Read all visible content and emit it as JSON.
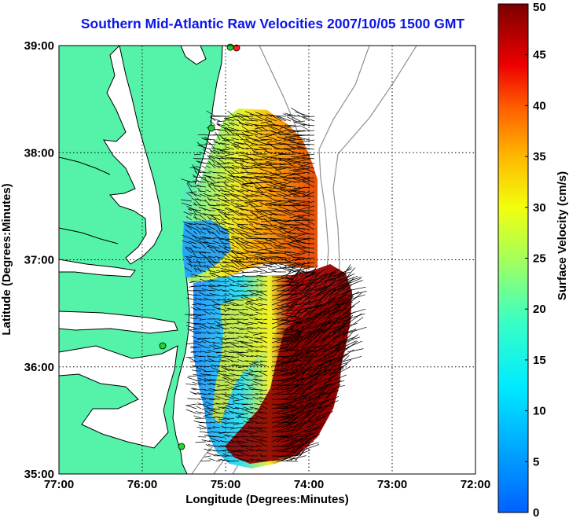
{
  "title": "Southern Mid-Atlantic Raw Velocities 2007/10/05 1500 GMT",
  "xlabel": "Longitude (Degrees:Minutes)",
  "ylabel": "Latitude (Degrees:Minutes)",
  "colorbar_label": "Surface Velocity (cm/s)",
  "x_ticks": [
    "77:00",
    "76:00",
    "75:00",
    "74:00",
    "73:00",
    "72:00"
  ],
  "y_ticks": [
    "39:00",
    "38:00",
    "37:00",
    "36:00",
    "35:00"
  ],
  "colorbar_ticks": [
    "50",
    "45",
    "40",
    "35",
    "30",
    "25",
    "20",
    "15",
    "10",
    "5",
    "0"
  ],
  "colors": {
    "land": "#55f2aa",
    "water": "#ffffff",
    "title": "#0a14e8",
    "vector": "#000000",
    "station_green": "#1fd62a",
    "station_red": "#ff2020"
  },
  "map": {
    "lon_range": [
      -77,
      -72
    ],
    "lat_range": [
      35,
      39
    ],
    "colormap_range_cm_s": [
      0,
      50
    ],
    "grid": true
  }
}
